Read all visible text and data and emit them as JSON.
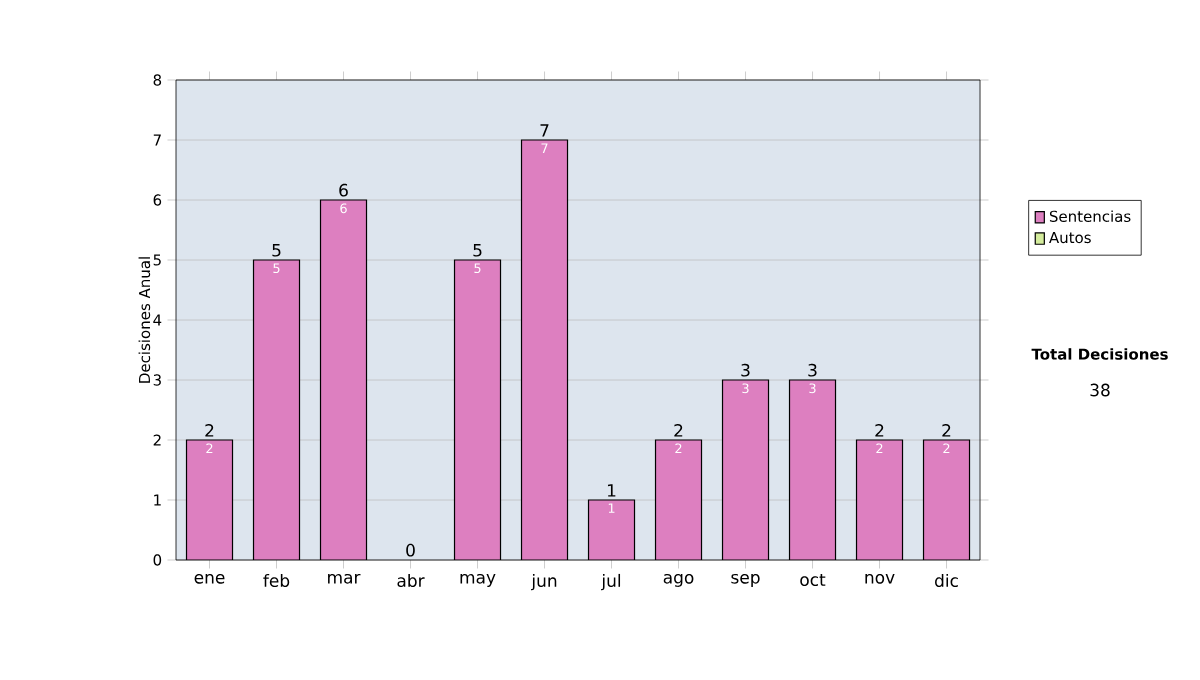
{
  "chart_data": {
    "type": "bar",
    "stacked": true,
    "ylabel": "Decisiones Anual",
    "categories": [
      "ene",
      "feb",
      "mar",
      "abr",
      "may",
      "jun",
      "jul",
      "ago",
      "sep",
      "oct",
      "nov",
      "dic"
    ],
    "series": [
      {
        "name": "Sentencias",
        "color": "#dd7fc0",
        "values": [
          2,
          5,
          6,
          0,
          5,
          7,
          1,
          2,
          3,
          3,
          2,
          2
        ],
        "value_labels": [
          "2",
          "5",
          "6",
          null,
          "5",
          "7",
          "1",
          "2",
          "3",
          "3",
          "2",
          "2"
        ]
      },
      {
        "name": "Autos",
        "color": "#d4ec9c",
        "values": [
          0,
          0,
          0,
          0,
          0,
          0,
          0,
          0,
          0,
          0,
          0,
          0
        ]
      }
    ],
    "totals": [
      "2",
      "5",
      "6",
      "0",
      "5",
      "7",
      "1",
      "2",
      "3",
      "3",
      "2",
      "2"
    ],
    "ylim": [
      0,
      8
    ],
    "yticks": [
      0,
      1,
      2,
      3,
      4,
      5,
      6,
      7,
      8
    ],
    "grid": "y",
    "legend": "right",
    "annotations": [
      "Total Decisiones",
      "38"
    ]
  }
}
